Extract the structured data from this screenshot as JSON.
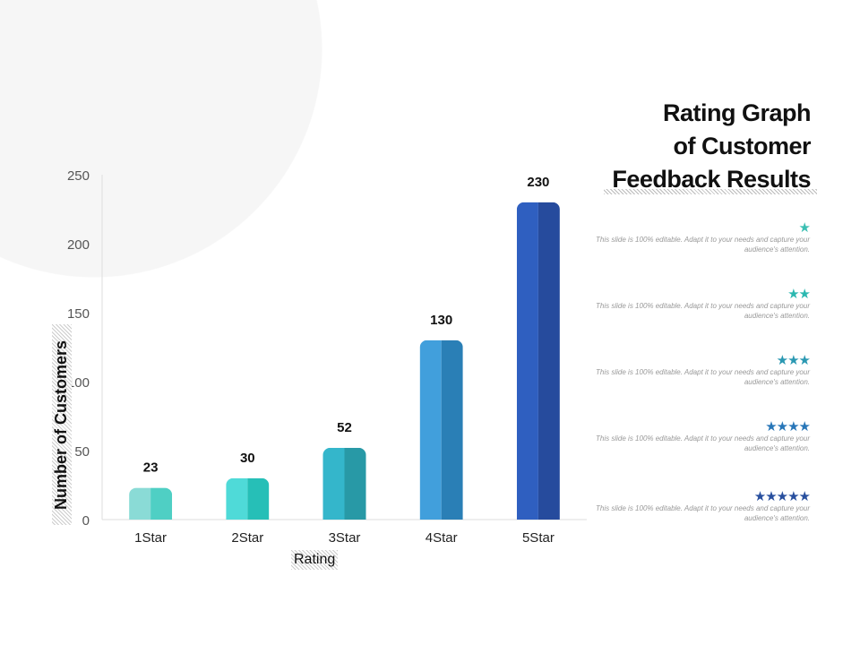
{
  "chart_data": {
    "type": "bar",
    "title": "Rating Graph of Customer Feedback Results",
    "title_lines": [
      "Rating Graph",
      "of Customer",
      "Feedback Results"
    ],
    "xlabel": "Rating",
    "ylabel": "Number of Customers",
    "categories": [
      "1Star",
      "2Star",
      "3Star",
      "4Star",
      "5Star"
    ],
    "values": [
      23,
      30,
      52,
      130,
      230
    ],
    "ylim": [
      0,
      250
    ],
    "yticks": [
      0,
      50,
      100,
      150,
      200,
      250
    ],
    "grid": false,
    "colors": [
      [
        "#8adbd6",
        "#4fcfc4"
      ],
      [
        "#4fdad8",
        "#26bfb7"
      ],
      [
        "#34b6cb",
        "#2899a6"
      ],
      [
        "#419fdc",
        "#2a7fb6"
      ],
      [
        "#2f5fc0",
        "#264b9d"
      ]
    ]
  },
  "legend": {
    "items": [
      {
        "stars": 1,
        "color": "#3cbfb3",
        "text": "This slide is 100% editable. Adapt it to your needs and capture your audience's attention."
      },
      {
        "stars": 2,
        "color": "#2bb8b0",
        "text": "This slide is 100% editable. Adapt it to your needs and capture your audience's attention."
      },
      {
        "stars": 3,
        "color": "#2a98b2",
        "text": "This slide is 100% editable. Adapt it to your needs and capture your audience's attention."
      },
      {
        "stars": 4,
        "color": "#2876b8",
        "text": "This slide is 100% editable. Adapt it to your needs and capture your audience's attention."
      },
      {
        "stars": 5,
        "color": "#284f9e",
        "text": "This slide is 100% editable. Adapt it to your needs and capture your audience's attention."
      }
    ]
  }
}
